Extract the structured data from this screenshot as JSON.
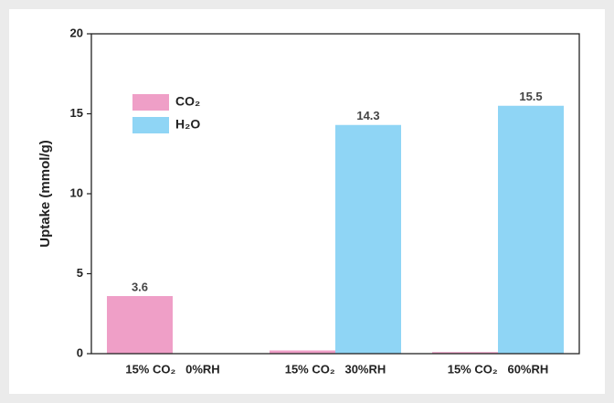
{
  "chart_data": {
    "type": "bar",
    "y_label": "Uptake (mmol/g)",
    "categories": [
      "15% CO₂   0%RH",
      "15% CO₂   30%RH",
      "15% CO₂   60%RH"
    ],
    "series": [
      {
        "name": "CO₂",
        "color": "#ef9fc7",
        "values": [
          3.6,
          0.2,
          0.1
        ],
        "value_labels": [
          "3.6",
          null,
          null
        ]
      },
      {
        "name": "H₂O",
        "color": "#8fd5f5",
        "values": [
          0,
          14.3,
          15.5
        ],
        "value_labels": [
          null,
          "14.3",
          "15.5"
        ]
      }
    ],
    "ylim": [
      0,
      20
    ],
    "yticks": [
      0,
      5,
      10,
      15,
      20
    ],
    "legend": "upper left"
  }
}
